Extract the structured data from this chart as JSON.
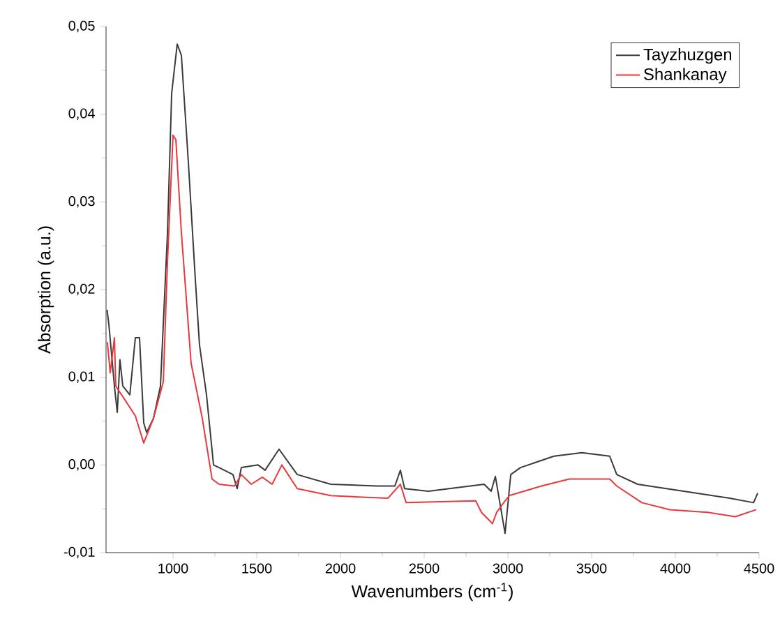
{
  "chart_data": {
    "type": "line",
    "xlabel": "Wavenumbers (cm$^{-1}$)",
    "ylabel": "Absorption (a.u.)",
    "xlim": [
      600,
      4500
    ],
    "ylim": [
      -0.01,
      0.05
    ],
    "xticks": [
      1000,
      1500,
      2000,
      2500,
      3000,
      3500,
      4000,
      4500
    ],
    "yticks": [
      {
        "value": -0.01,
        "label": "-0,01"
      },
      {
        "value": 0,
        "label": "0,00"
      },
      {
        "value": 0.01,
        "label": "0,01"
      },
      {
        "value": 0.02,
        "label": "0,02"
      },
      {
        "value": 0.03,
        "label": "0,03"
      },
      {
        "value": 0.04,
        "label": "0,04"
      },
      {
        "value": 0.05,
        "label": "0,05"
      }
    ],
    "legend": "top right",
    "marker": "none",
    "line_style": "solid",
    "series": [
      {
        "name": "Tayzhuzgen",
        "color": "#3a3a3a",
        "x": [
          606,
          617,
          650,
          667,
          683,
          700,
          742,
          775,
          800,
          825,
          842,
          883,
          925,
          967,
          992,
          1025,
          1050,
          1092,
          1133,
          1158,
          1200,
          1242,
          1275,
          1358,
          1383,
          1408,
          1508,
          1550,
          1633,
          1742,
          1942,
          2217,
          2325,
          2358,
          2383,
          2525,
          2858,
          2900,
          2925,
          2983,
          3017,
          3075,
          3275,
          3442,
          3608,
          3650,
          3775,
          4050,
          4325,
          4467,
          4492
        ],
        "values": [
          0.0177,
          0.016,
          0.009,
          0.006,
          0.012,
          0.009,
          0.008,
          0.0145,
          0.0145,
          0.0048,
          0.0037,
          0.0053,
          0.009,
          0.0265,
          0.0424,
          0.048,
          0.0467,
          0.0344,
          0.0212,
          0.0137,
          0.008,
          0.0,
          -0.0003,
          -0.0011,
          -0.0027,
          -0.0003,
          0.0,
          -0.0006,
          0.0018,
          -0.0011,
          -0.0022,
          -0.0024,
          -0.0024,
          -0.0006,
          -0.0027,
          -0.003,
          -0.0022,
          -0.003,
          -0.0013,
          -0.0078,
          -0.0011,
          -0.0003,
          0.001,
          0.0014,
          0.001,
          -0.0011,
          -0.0022,
          -0.003,
          -0.0038,
          -0.0043,
          -0.0032
        ]
      },
      {
        "name": "Shankanay",
        "color": "#e8383d",
        "x": [
          608,
          625,
          650,
          658,
          717,
          775,
          825,
          883,
          942,
          967,
          1000,
          1017,
          1050,
          1108,
          1175,
          1233,
          1275,
          1367,
          1408,
          1467,
          1533,
          1592,
          1650,
          1742,
          1942,
          2283,
          2358,
          2392,
          2808,
          2842,
          2908,
          2933,
          2975,
          3008,
          3200,
          3367,
          3608,
          3650,
          3800,
          3967,
          4192,
          4358,
          4483
        ],
        "values": [
          0.014,
          0.0105,
          0.0145,
          0.009,
          0.0073,
          0.0056,
          0.0025,
          0.0053,
          0.0095,
          0.0232,
          0.0376,
          0.0371,
          0.0265,
          0.0116,
          0.0053,
          -0.0016,
          -0.0022,
          -0.0024,
          -0.0011,
          -0.0022,
          -0.0014,
          -0.0022,
          0.0,
          -0.0027,
          -0.0035,
          -0.0038,
          -0.0022,
          -0.0043,
          -0.0041,
          -0.0054,
          -0.0067,
          -0.0054,
          -0.0043,
          -0.0035,
          -0.0024,
          -0.0016,
          -0.0016,
          -0.0024,
          -0.0043,
          -0.0051,
          -0.0054,
          -0.0059,
          -0.0051
        ]
      }
    ]
  }
}
